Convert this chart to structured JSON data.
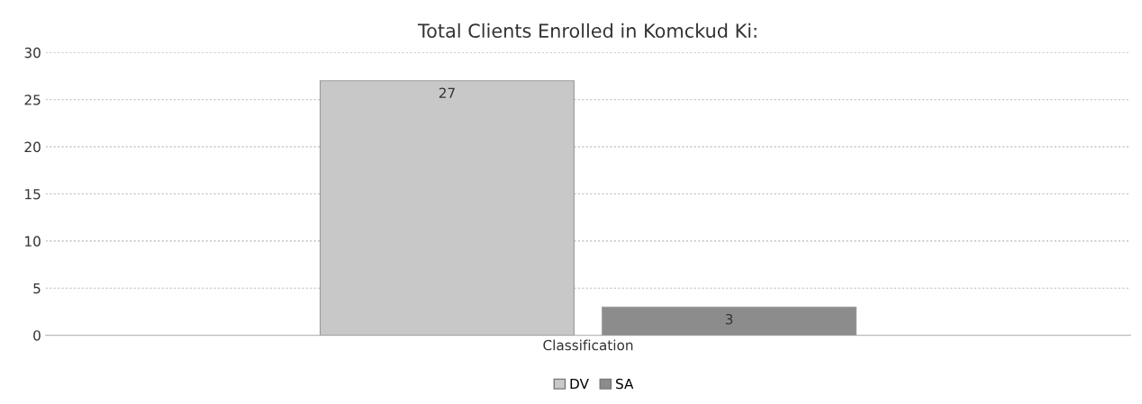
{
  "chart_data": {
    "type": "bar",
    "title": "Total Clients Enrolled in Komckud Ki:",
    "categories": [
      "Classification"
    ],
    "series": [
      {
        "name": "DV",
        "color": "#c8c8c8",
        "values": [
          27
        ]
      },
      {
        "name": "SA",
        "color": "#8c8c8c",
        "values": [
          3
        ]
      }
    ],
    "ylim": [
      0,
      30
    ],
    "yticks": [
      0,
      5,
      10,
      15,
      20,
      25,
      30
    ],
    "grid": "y",
    "legend": "bottom",
    "data_labels": true
  }
}
